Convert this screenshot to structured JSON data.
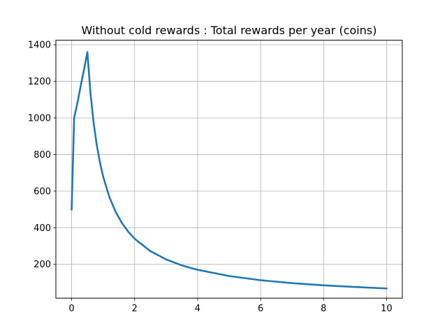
{
  "chart_data": {
    "type": "line",
    "title": "Without cold rewards : Total rewards per year (coins)",
    "xlabel": "",
    "ylabel": "",
    "xlim": [
      -0.5,
      10.5
    ],
    "ylim": [
      15,
      1425
    ],
    "xticks": [
      0,
      2,
      4,
      6,
      8,
      10
    ],
    "yticks": [
      200,
      400,
      600,
      800,
      1000,
      1200,
      1400
    ],
    "grid": true,
    "series": [
      {
        "color": "#1f77b4",
        "x": [
          0,
          0.08,
          0.2,
          0.3,
          0.4,
          0.5,
          0.6,
          0.7,
          0.8,
          0.9,
          1.0,
          1.2,
          1.4,
          1.6,
          1.8,
          2.0,
          2.5,
          3.0,
          3.5,
          4.0,
          5.0,
          6.0,
          7.0,
          8.0,
          9.0,
          10.0
        ],
        "y": [
          500,
          1000,
          1095,
          1185,
          1270,
          1360,
          1133,
          971,
          850,
          756,
          680,
          567,
          486,
          425,
          378,
          340,
          272,
          227,
          194,
          170,
          136,
          113,
          97,
          85,
          76,
          68
        ]
      }
    ]
  }
}
